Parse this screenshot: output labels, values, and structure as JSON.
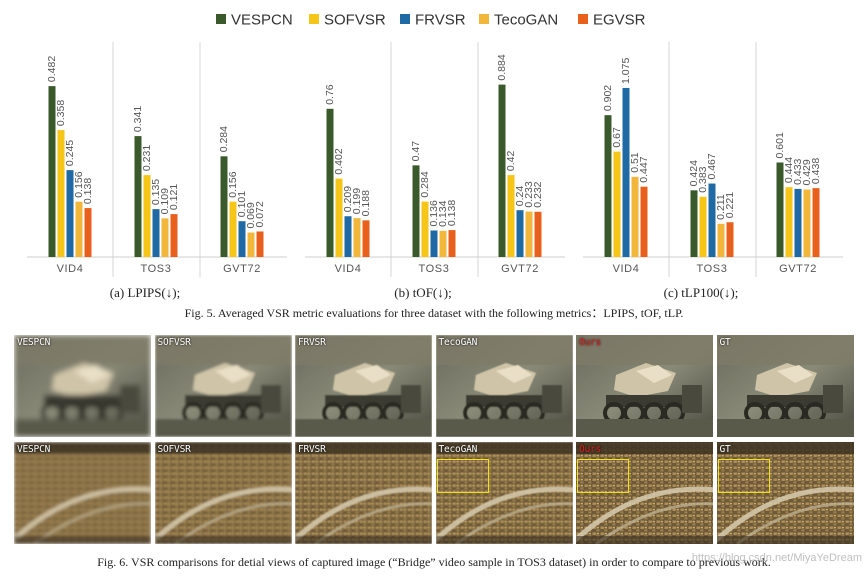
{
  "legend": [
    {
      "name": "VESPCN",
      "color": "#3a5a2c"
    },
    {
      "name": "SOFVSR",
      "color": "#f5c518"
    },
    {
      "name": "FRVSR",
      "color": "#1f6aa5"
    },
    {
      "name": "TecoGAN",
      "color": "#f2b73a"
    },
    {
      "name": "EGVSR",
      "color": "#e8601c"
    }
  ],
  "chart_data": [
    {
      "type": "bar",
      "title": "(a) LPIPS(↓);",
      "categories": [
        "VID4",
        "TOS3",
        "GVT72"
      ],
      "ylim": [
        0,
        0.55
      ],
      "series": [
        {
          "name": "VESPCN",
          "values": [
            0.482,
            0.341,
            0.284
          ]
        },
        {
          "name": "SOFVSR",
          "values": [
            0.358,
            0.231,
            0.156
          ]
        },
        {
          "name": "FRVSR",
          "values": [
            0.245,
            0.135,
            0.101
          ]
        },
        {
          "name": "TecoGAN",
          "values": [
            0.156,
            0.109,
            0.069
          ]
        },
        {
          "name": "EGVSR",
          "values": [
            0.138,
            0.121,
            0.072
          ]
        }
      ]
    },
    {
      "type": "bar",
      "title": "(b) tOF(↓);",
      "categories": [
        "VID4",
        "TOS3",
        "GVT72"
      ],
      "ylim": [
        0,
        1.0
      ],
      "series": [
        {
          "name": "VESPCN",
          "values": [
            0.76,
            0.47,
            0.884
          ]
        },
        {
          "name": "SOFVSR",
          "values": [
            0.402,
            0.284,
            0.42
          ]
        },
        {
          "name": "FRVSR",
          "values": [
            0.209,
            0.136,
            0.24
          ]
        },
        {
          "name": "TecoGAN",
          "values": [
            0.199,
            0.134,
            0.233
          ]
        },
        {
          "name": "EGVSR",
          "values": [
            0.188,
            0.138,
            0.232
          ]
        }
      ]
    },
    {
      "type": "bar",
      "title": "(c) tLP100(↓);",
      "categories": [
        "VID4",
        "TOS3",
        "GVT72"
      ],
      "ylim": [
        0,
        1.24
      ],
      "series": [
        {
          "name": "VESPCN",
          "values": [
            0.902,
            0.424,
            0.601
          ]
        },
        {
          "name": "SOFVSR",
          "values": [
            0.67,
            0.383,
            0.444
          ]
        },
        {
          "name": "FRVSR",
          "values": [
            1.075,
            0.467,
            0.433
          ]
        },
        {
          "name": "TecoGAN",
          "values": [
            0.51,
            0.211,
            0.429
          ]
        },
        {
          "name": "EGVSR",
          "values": [
            0.447,
            0.221,
            0.438
          ]
        }
      ]
    }
  ],
  "fig5_caption": "Fig. 5.   Averaged VSR metric evaluations for three dataset with the following metrics：LPIPS, tOF, tLP.",
  "panels": {
    "row1": [
      {
        "label": "VESPCN",
        "label_color": "#ffffff",
        "blur": 2.6
      },
      {
        "label": "SOFVSR",
        "label_color": "#ffffff",
        "blur": 1.4
      },
      {
        "label": "FRVSR",
        "label_color": "#ffffff",
        "blur": 0.9
      },
      {
        "label": "TecoGAN",
        "label_color": "#ffffff",
        "blur": 0.4
      },
      {
        "label": "Ours",
        "label_color": "#e02020",
        "blur": 0.3
      },
      {
        "label": "GT",
        "label_color": "#ffffff",
        "blur": 0.2
      }
    ],
    "row2": [
      {
        "label": "VESPCN",
        "label_color": "#ffffff",
        "blur": 1.6,
        "box": false
      },
      {
        "label": "SOFVSR",
        "label_color": "#ffffff",
        "blur": 1.0,
        "box": false
      },
      {
        "label": "FRVSR",
        "label_color": "#ffffff",
        "blur": 0.7,
        "box": false
      },
      {
        "label": "TecoGAN",
        "label_color": "#ffffff",
        "blur": 0.4,
        "box": true
      },
      {
        "label": "Ours",
        "label_color": "#e02020",
        "blur": 0.3,
        "box": true
      },
      {
        "label": "GT",
        "label_color": "#ffffff",
        "blur": 0.2,
        "box": true
      }
    ]
  },
  "fig6_caption": "Fig. 6.   VSR comparisons for detial views of captured image (“Bridge” video sample in TOS3 dataset) in order to compare to previous work.",
  "watermark": "https://blog.csdn.net/MiyaYeDream"
}
